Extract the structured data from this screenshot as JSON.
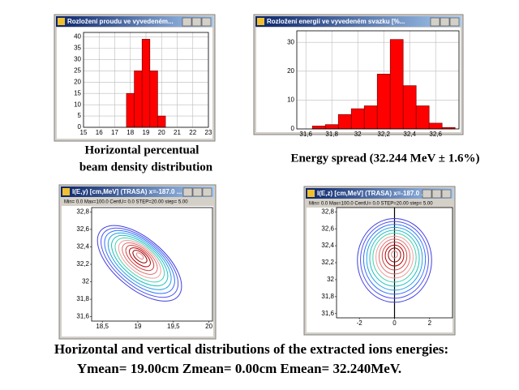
{
  "chart_data": [
    {
      "type": "histogram",
      "title": "Rozložení proudu ve vyvedeném...",
      "bins": [
        17.75,
        18.25,
        18.75,
        19.25,
        19.75,
        20.25
      ],
      "values": [
        15,
        25,
        39,
        25,
        5
      ],
      "color": "#ff0000",
      "xlim": [
        15,
        23
      ],
      "xticks": [
        15,
        16,
        17,
        18,
        19,
        20,
        21,
        22,
        23
      ],
      "ylim": [
        0,
        42
      ],
      "yticks": [
        0,
        5,
        10,
        15,
        20,
        25,
        30,
        35,
        40
      ],
      "grid": true
    },
    {
      "type": "histogram",
      "title": "Rozložení energií ve vyvedeném svazku [%...",
      "bins": [
        31.65,
        31.75,
        31.85,
        31.95,
        32.05,
        32.15,
        32.25,
        32.35,
        32.45,
        32.55,
        32.65,
        32.75
      ],
      "values": [
        1,
        1.5,
        5,
        7,
        8,
        19,
        31,
        15,
        8,
        2,
        0.5
      ],
      "color": "#ff0000",
      "xlim": [
        31.53,
        32.78
      ],
      "xticks": [
        {
          "value": 31.6,
          "label": "31,6"
        },
        {
          "value": 31.8,
          "label": "31,8"
        },
        32,
        {
          "value": 32.2,
          "label": "32,2"
        },
        {
          "value": 32.4,
          "label": "32,4"
        },
        {
          "value": 32.6,
          "label": "32,6"
        }
      ],
      "ylim": [
        0,
        34
      ],
      "yticks": [
        0,
        10,
        20,
        30
      ],
      "grid": true
    },
    {
      "type": "contour",
      "title": "I(E,y) [cm,MeV]  (TRASA) x=-187.0 ...",
      "subtitle": "Min= 0.0  Max=100.0  CentU= 0.0  STEP=20.00  step= 5.00",
      "xlim": [
        18.35,
        20.05
      ],
      "xticks": [
        {
          "value": 18.5,
          "label": "18,5"
        },
        19,
        {
          "value": 19.5,
          "label": "19,5"
        },
        20
      ],
      "ylim": [
        31.55,
        32.85
      ],
      "yticks": [
        {
          "value": 31.6,
          "label": "31,6"
        },
        {
          "value": 31.8,
          "label": "31,8"
        },
        32,
        {
          "value": 32.2,
          "label": "32,2"
        },
        {
          "value": 32.4,
          "label": "32,4"
        },
        {
          "value": 32.6,
          "label": "32,6"
        },
        {
          "value": 32.8,
          "label": "32,8"
        }
      ]
    },
    {
      "type": "contour",
      "title": "I(E,z) [cm,MeV]  (TRASA) x=-187.0 ...",
      "subtitle": "Min= 0.0  Max=100.0  CentU= 0.0  STEP=20.00  step= 5.00",
      "xlim": [
        -3.3,
        3.3
      ],
      "xticks": [
        -2,
        0,
        2
      ],
      "ylim": [
        31.55,
        32.85
      ],
      "yticks": [
        {
          "value": 31.6,
          "label": "31,6"
        },
        {
          "value": 31.8,
          "label": "31,8"
        },
        32,
        {
          "value": 32.2,
          "label": "32,2"
        },
        {
          "value": 32.4,
          "label": "32,4"
        },
        {
          "value": 32.6,
          "label": "32,6"
        },
        {
          "value": 32.8,
          "label": "32,8"
        }
      ]
    }
  ],
  "captions": {
    "density_1": "Horizontal percentual",
    "density_2": "beam density distribution",
    "energy": "Energy spread  (32.244 MeV ± 1.6%)",
    "bottom_1": "Horizontal and vertical distributions of the extracted ions energies:",
    "bottom_2": "Ymean= 19.00cm  Zmean= 0.00cm  Emean= 32.240MeV."
  }
}
